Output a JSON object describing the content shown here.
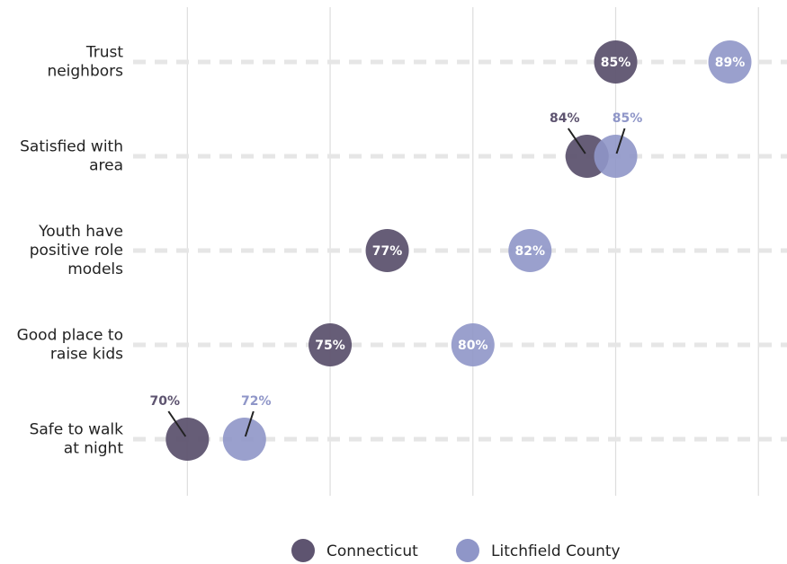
{
  "chart_data": {
    "type": "dot",
    "categories": [
      "Trust neighbors",
      "Satisfied with area",
      "Youth have positive role models",
      "Good place to raise kids",
      "Safe to walk at night"
    ],
    "series": [
      {
        "name": "Connecticut",
        "color": "#5e5470",
        "values": [
          85,
          84,
          77,
          75,
          70
        ],
        "value_labels": [
          "85%",
          "84%",
          "77%",
          "75%",
          "70%"
        ]
      },
      {
        "name": "Litchfield County",
        "color": "#8f96c8",
        "values": [
          89,
          85,
          82,
          80,
          72
        ],
        "value_labels": [
          "89%",
          "85%",
          "82%",
          "80%",
          "72%"
        ]
      }
    ],
    "xlim": [
      68.1,
      91
    ],
    "xticks": [
      70,
      75,
      80,
      85,
      90
    ],
    "grid": true,
    "legend": "bottom"
  }
}
